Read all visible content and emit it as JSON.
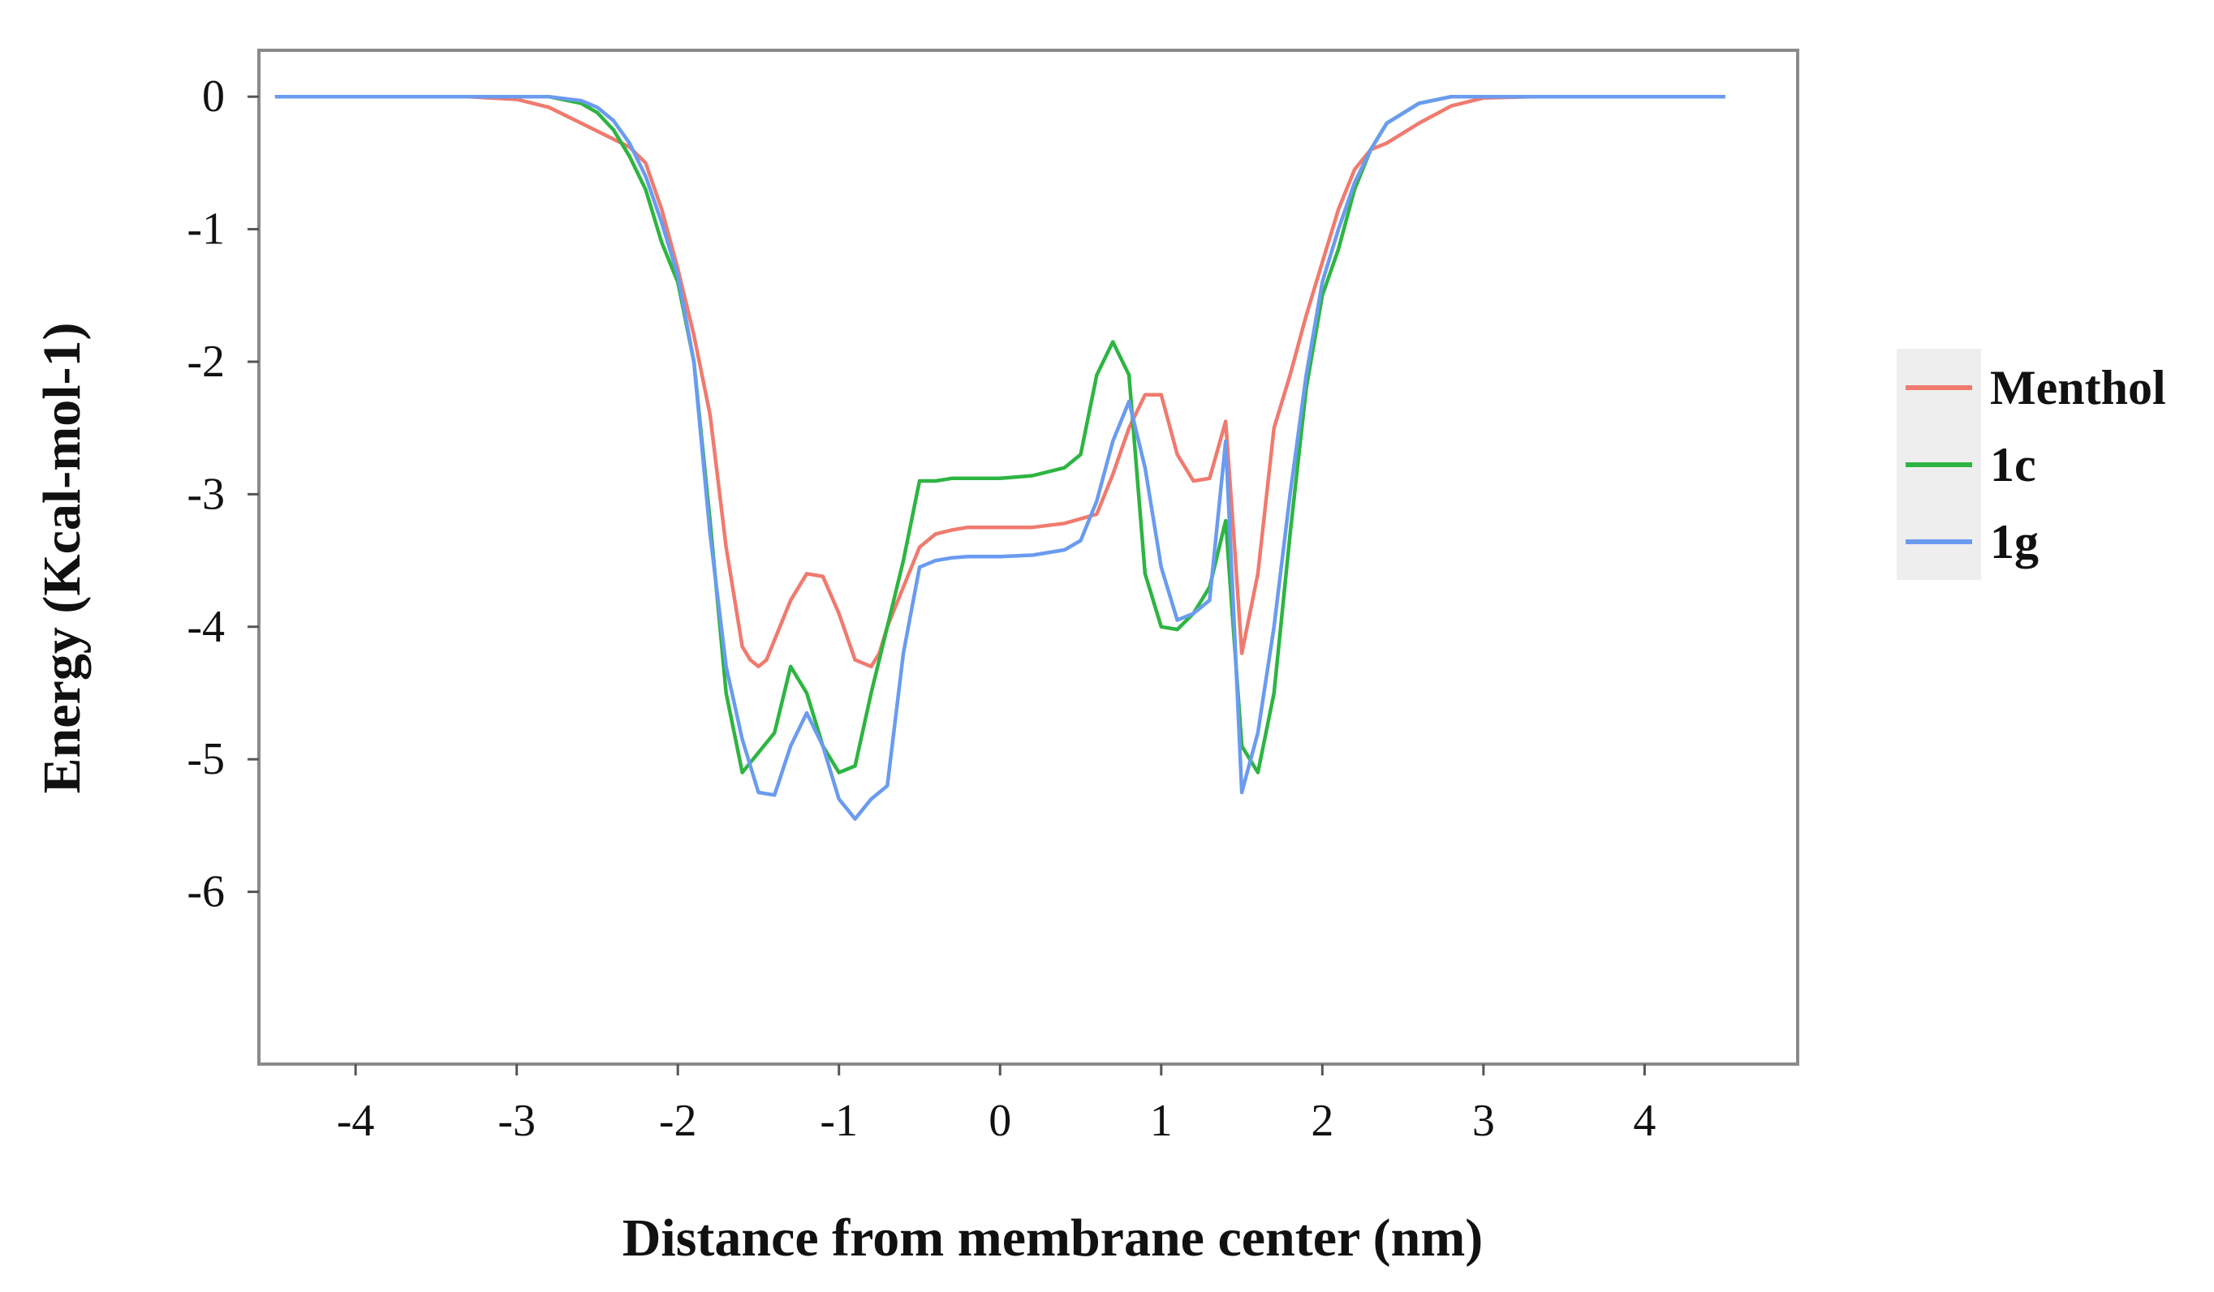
{
  "chart_data": {
    "type": "line",
    "title": "",
    "xlabel": "Distance from membrane center (nm)",
    "ylabel": "Energy (Kcal-mol-1)",
    "xlim": [
      -4.6,
      4.95
    ],
    "ylim": [
      -7.3,
      0.35
    ],
    "xticks": [
      -4,
      -3,
      -2,
      -1,
      0,
      1,
      2,
      3,
      4
    ],
    "yticks": [
      0,
      -1,
      -2,
      -3,
      -4,
      -5,
      -6
    ],
    "grid": false,
    "legend_position": "right",
    "series": [
      {
        "name": "Menthol",
        "color": "#f07a6e",
        "x": [
          -4.5,
          -3.3,
          -3.0,
          -2.8,
          -2.6,
          -2.4,
          -2.3,
          -2.2,
          -2.1,
          -2.0,
          -1.9,
          -1.8,
          -1.7,
          -1.6,
          -1.55,
          -1.5,
          -1.45,
          -1.4,
          -1.3,
          -1.2,
          -1.1,
          -1.0,
          -0.9,
          -0.8,
          -0.75,
          -0.7,
          -0.6,
          -0.5,
          -0.4,
          -0.3,
          -0.2,
          -0.1,
          0.0,
          0.2,
          0.4,
          0.6,
          0.7,
          0.8,
          0.9,
          1.0,
          1.1,
          1.2,
          1.3,
          1.4,
          1.45,
          1.5,
          1.6,
          1.7,
          1.8,
          1.9,
          2.0,
          2.1,
          2.2,
          2.3,
          2.4,
          2.6,
          2.8,
          3.0,
          3.3,
          4.5
        ],
        "y": [
          0,
          0,
          -0.02,
          -0.08,
          -0.2,
          -0.32,
          -0.38,
          -0.5,
          -0.85,
          -1.3,
          -1.8,
          -2.4,
          -3.4,
          -4.15,
          -4.25,
          -4.3,
          -4.25,
          -4.1,
          -3.8,
          -3.6,
          -3.62,
          -3.9,
          -4.25,
          -4.3,
          -4.2,
          -4.0,
          -3.7,
          -3.4,
          -3.3,
          -3.27,
          -3.25,
          -3.25,
          -3.25,
          -3.25,
          -3.22,
          -3.15,
          -2.85,
          -2.5,
          -2.25,
          -2.25,
          -2.7,
          -2.9,
          -2.88,
          -2.45,
          -3.3,
          -4.2,
          -3.6,
          -2.5,
          -2.1,
          -1.65,
          -1.25,
          -0.85,
          -0.55,
          -0.4,
          -0.35,
          -0.2,
          -0.07,
          -0.01,
          0,
          0
        ]
      },
      {
        "name": "1c",
        "color": "#2db542",
        "x": [
          -4.5,
          -3.3,
          -3.0,
          -2.8,
          -2.6,
          -2.5,
          -2.4,
          -2.3,
          -2.2,
          -2.1,
          -2.0,
          -1.9,
          -1.8,
          -1.7,
          -1.6,
          -1.5,
          -1.4,
          -1.3,
          -1.2,
          -1.1,
          -1.0,
          -0.9,
          -0.8,
          -0.7,
          -0.6,
          -0.5,
          -0.4,
          -0.3,
          -0.2,
          -0.1,
          0.0,
          0.2,
          0.4,
          0.5,
          0.6,
          0.7,
          0.8,
          0.9,
          1.0,
          1.1,
          1.2,
          1.3,
          1.4,
          1.5,
          1.6,
          1.7,
          1.8,
          1.9,
          2.0,
          2.1,
          2.2,
          2.3,
          2.4,
          2.6,
          2.8,
          3.0,
          3.3,
          4.5
        ],
        "y": [
          0,
          0,
          0,
          0,
          -0.05,
          -0.12,
          -0.25,
          -0.45,
          -0.7,
          -1.1,
          -1.4,
          -2.0,
          -3.2,
          -4.5,
          -5.1,
          -4.95,
          -4.8,
          -4.3,
          -4.5,
          -4.9,
          -5.1,
          -5.05,
          -4.5,
          -4.0,
          -3.5,
          -2.9,
          -2.9,
          -2.88,
          -2.88,
          -2.88,
          -2.88,
          -2.86,
          -2.8,
          -2.7,
          -2.1,
          -1.85,
          -2.1,
          -3.6,
          -4.0,
          -4.02,
          -3.9,
          -3.7,
          -3.2,
          -4.9,
          -5.1,
          -4.5,
          -3.3,
          -2.2,
          -1.5,
          -1.15,
          -0.7,
          -0.4,
          -0.2,
          -0.05,
          0,
          0,
          0,
          0
        ]
      },
      {
        "name": "1g",
        "color": "#6a9bf0",
        "x": [
          -4.5,
          -3.3,
          -3.0,
          -2.8,
          -2.6,
          -2.5,
          -2.4,
          -2.3,
          -2.2,
          -2.1,
          -2.0,
          -1.9,
          -1.8,
          -1.7,
          -1.6,
          -1.5,
          -1.4,
          -1.3,
          -1.2,
          -1.1,
          -1.0,
          -0.9,
          -0.8,
          -0.7,
          -0.6,
          -0.5,
          -0.4,
          -0.3,
          -0.2,
          -0.1,
          0.0,
          0.2,
          0.4,
          0.5,
          0.6,
          0.7,
          0.8,
          0.9,
          1.0,
          1.1,
          1.2,
          1.3,
          1.4,
          1.45,
          1.5,
          1.6,
          1.7,
          1.8,
          1.9,
          2.0,
          2.1,
          2.2,
          2.3,
          2.4,
          2.6,
          2.8,
          3.0,
          3.3,
          4.5
        ],
        "y": [
          0,
          0,
          0,
          0,
          -0.03,
          -0.08,
          -0.18,
          -0.35,
          -0.6,
          -0.95,
          -1.35,
          -2.0,
          -3.3,
          -4.3,
          -4.85,
          -5.25,
          -5.27,
          -4.9,
          -4.65,
          -4.9,
          -5.3,
          -5.45,
          -5.3,
          -5.2,
          -4.2,
          -3.55,
          -3.5,
          -3.48,
          -3.47,
          -3.47,
          -3.47,
          -3.46,
          -3.42,
          -3.35,
          -3.05,
          -2.6,
          -2.3,
          -2.8,
          -3.55,
          -3.95,
          -3.9,
          -3.8,
          -2.6,
          -3.9,
          -5.25,
          -4.8,
          -4.0,
          -3.0,
          -2.1,
          -1.4,
          -1.0,
          -0.65,
          -0.4,
          -0.2,
          -0.05,
          0,
          0,
          0,
          0
        ]
      }
    ]
  }
}
